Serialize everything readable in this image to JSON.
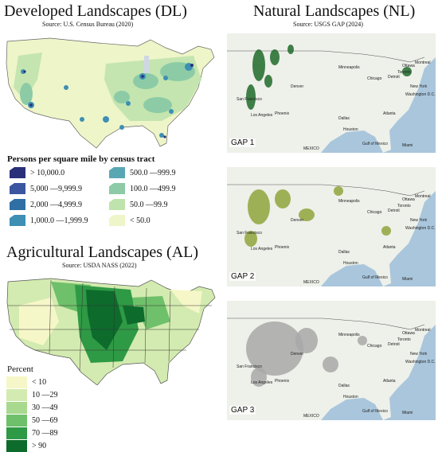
{
  "dl": {
    "title": "Developed Landscapes (DL)",
    "source": "Source:  U.S. Census Bureau (2020)",
    "legend_title": "Persons per square mile by census tract",
    "legend": [
      {
        "label": "> 10,000.0",
        "color": "#2a2f7a"
      },
      {
        "label": "500.0 —999.9",
        "color": "#5aa7b4"
      },
      {
        "label": "5,000 —9,999.9",
        "color": "#3b55a0"
      },
      {
        "label": "100.0 —499.9",
        "color": "#8ccba6"
      },
      {
        "label": "2,000 —4,999.9",
        "color": "#2f6fa6"
      },
      {
        "label": "50.0 —99.9",
        "color": "#bfe3ac"
      },
      {
        "label": "1,000.0 —1,999.9",
        "color": "#3d8fb4"
      },
      {
        "label": "< 50.0",
        "color": "#eef5c8"
      }
    ]
  },
  "al": {
    "title": "Agricultural Landscapes (AL)",
    "source": "Source:  USDA NASS (2022)",
    "legend_title": "Percent",
    "legend": [
      {
        "label": "< 10",
        "color": "#f6f7c8"
      },
      {
        "label": "10 —29",
        "color": "#d3ebb0"
      },
      {
        "label": "30 —49",
        "color": "#a8d98e"
      },
      {
        "label": "50 —69",
        "color": "#6fc06a"
      },
      {
        "label": "70 —89",
        "color": "#2f9a45"
      },
      {
        "label": "> 90",
        "color": "#0d6b2c"
      }
    ]
  },
  "nl": {
    "title": "Natural Landscapes (NL)",
    "source": "Source:  USGS GAP (2024)",
    "panels": [
      {
        "label": "GAP 1"
      },
      {
        "label": "GAP 2"
      },
      {
        "label": "GAP 3"
      }
    ],
    "cities": [
      "Ottawa",
      "Montreal",
      "Minneapolis",
      "Chicago",
      "Detroit",
      "Toronto",
      "New York",
      "Washington D.C.",
      "Denver",
      "Dallas",
      "Houston",
      "Los Angeles",
      "San Francisco",
      "Phoenix",
      "Miami",
      "Atlanta",
      "Gulf of Mexico",
      "MEXICO"
    ]
  },
  "colors": {
    "water": "#a9c6dc",
    "land_base": "#eef0ea",
    "gap1": "#1f6b2a",
    "gap2": "#8ea53c",
    "gap3": "#a8a8a8"
  }
}
